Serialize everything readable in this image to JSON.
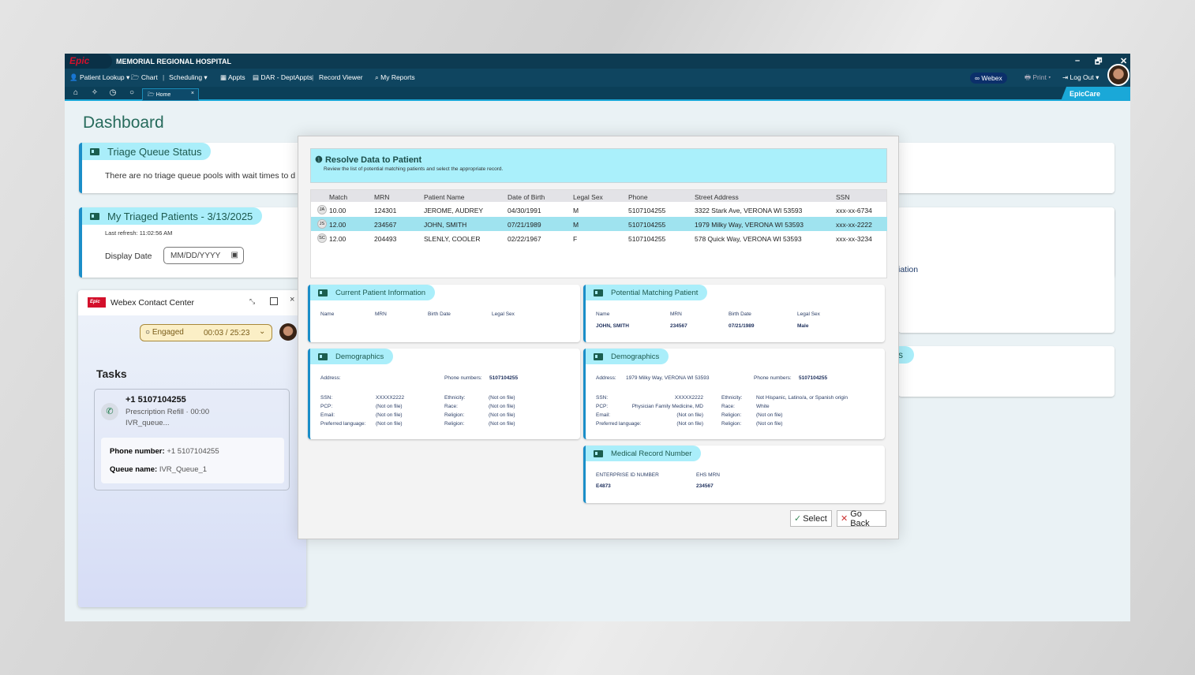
{
  "window": {
    "logo": "Epic",
    "title": "MEMORIAL REGIONAL HOSPITAL",
    "controls": [
      "–",
      "🗗",
      "✕"
    ]
  },
  "menu": {
    "items": [
      "Patient Lookup ▾",
      "Chart",
      "Scheduling ▾",
      "Appts",
      "DAR - DeptAppts",
      "Record Viewer",
      "My Reports"
    ],
    "webex": "Webex",
    "print": "Print",
    "logout": "Log Out",
    "app": "EpicCare"
  },
  "tabs": {
    "home": "Home",
    "close": "×"
  },
  "dashboard": {
    "title": "Dashboard",
    "triage": {
      "title": "Triage Queue Status",
      "text": "There are no triage queue pools with wait times to d"
    },
    "triaged": {
      "title": "My Triaged Patients - 3/13/2025",
      "refresh": "Last refresh: 11:02:56 AM",
      "date_label": "Display Date",
      "date_placeholder": "MM/DD/YYYY"
    },
    "right_fragment1": "iation",
    "right_fragment2": "s"
  },
  "webex": {
    "logo": "Epic",
    "title": "Webex Contact Center",
    "status": "Engaged",
    "timer": "00:03 / 25:23",
    "tasks_title": "Tasks",
    "task": {
      "phone": "+1 5107104255",
      "desc": "Prescription Refill · 00:00",
      "queue": "IVR_queue...",
      "phone_label": "Phone number:",
      "phone_value": "+1 5107104255",
      "queue_label": "Queue name:",
      "queue_value": "IVR_Queue_1"
    }
  },
  "modal": {
    "title": "Resolve Data to Patient",
    "subtitle": "Review the list of potential matching patients and select the appropriate record.",
    "columns": [
      "Match",
      "MRN",
      "Patient Name",
      "Date of Birth",
      "Legal Sex",
      "Phone",
      "Street Address",
      "SSN"
    ],
    "rows": [
      {
        "initials": "JA",
        "match": "10.00",
        "mrn": "124301",
        "name": "JEROME, AUDREY",
        "dob": "04/30/1991",
        "sex": "M",
        "phone": "5107104255",
        "address": "3322 Stark Ave, VERONA WI 53593",
        "ssn": "xxx-xx-6734",
        "selected": false
      },
      {
        "initials": "JS",
        "match": "12.00",
        "mrn": "234567",
        "name": "JOHN, SMITH",
        "dob": "07/21/1989",
        "sex": "M",
        "phone": "5107104255",
        "address": "1979 Milky Way, VERONA WI 53593",
        "ssn": "xxx-xx-2222",
        "selected": true
      },
      {
        "initials": "SC",
        "match": "12.00",
        "mrn": "204493",
        "name": "SLENLY, COOLER",
        "dob": "02/22/1967",
        "sex": "F",
        "phone": "5107104255",
        "address": "578 Quick Way, VERONA WI 53593",
        "ssn": "xxx-xx-3234",
        "selected": false
      }
    ],
    "current": {
      "title": "Current Patient Information",
      "labels": [
        "Name",
        "MRN",
        "Birth Date",
        "Legal Sex"
      ]
    },
    "potential": {
      "title": "Potential Matching Patient",
      "labels": [
        "Name",
        "MRN",
        "Birth Date",
        "Legal Sex"
      ],
      "values": [
        "JOHN, SMITH",
        "234567",
        "07/21/1989",
        "Male"
      ]
    },
    "demo_left": {
      "title": "Demographics",
      "address_label": "Address:",
      "address": "",
      "phone_label": "Phone numbers:",
      "phone": "5107104255",
      "rows": [
        [
          "SSN:",
          "XXXXX2222",
          "Ethnicity:",
          "(Not on file)"
        ],
        [
          "PCP:",
          "(Not on file)",
          "Race:",
          "(Not on file)"
        ],
        [
          "Email:",
          "(Not on file)",
          "Religion:",
          "(Not on file)"
        ],
        [
          "Preferred language:",
          "(Not on file)",
          "Religion:",
          "(Not on file)"
        ]
      ]
    },
    "demo_right": {
      "title": "Demographics",
      "address_label": "Address:",
      "address": "1979 Milky Way, VERONA WI 53593",
      "phone_label": "Phone numbers:",
      "phone": "5107104255",
      "rows": [
        [
          "SSN:",
          "XXXXX2222",
          "Ethnicity:",
          "Not Hispanic, Latino/a, or Spanish origin"
        ],
        [
          "PCP:",
          "Physician Family Medicine, MD",
          "Race:",
          "White"
        ],
        [
          "Email:",
          "(Not on file)",
          "Religion:",
          "(Not on file)"
        ],
        [
          "Preferred language:",
          "(Not on file)",
          "Religion:",
          "(Not on file)"
        ]
      ]
    },
    "mrn": {
      "title": "Medical Record Number",
      "labels": [
        "ENTERPRISE ID NUMBER",
        "EHS MRN"
      ],
      "values": [
        "E4873",
        "234567"
      ]
    },
    "select": "Select",
    "go_back": "Go Back"
  },
  "colors": {
    "titlebar": "#0d3b52",
    "accent": "#1b8ec8",
    "pill": "#aaeefa",
    "selected_row": "#9fe3ef",
    "epic_red": "#d3102b"
  }
}
